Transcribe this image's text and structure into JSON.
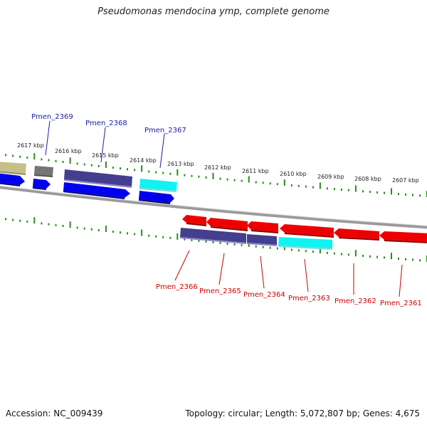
{
  "title": "Pseudomonas mendocina ymp, complete genome",
  "footer": {
    "accession": "Accession: NC_009439",
    "summary": "Topology: circular; Length: 5,072,807 bp; Genes: 4,675"
  },
  "colors": {
    "forward_label": "#1a1aa6",
    "reverse_label": "#cc0000",
    "tick_green": "#2a8a1e",
    "backbone": "#8a8a8a",
    "blue": "#0000ee",
    "navy": "#3f3a88",
    "cyan": "#00f0f0",
    "red": "#ee0000",
    "grey": "#6e6e6e",
    "khaki": "#b5ae7a"
  },
  "kbp_ticks": [
    "2617 kbp",
    "2616 kbp",
    "2615 kbp",
    "2614 kbp",
    "2613 kbp",
    "2612 kbp",
    "2611 kbp",
    "2610 kbp",
    "2609 kbp",
    "2608 kbp",
    "2607 kbp"
  ],
  "forward_gene_labels": [
    "Pmen_2369",
    "Pmen_2368",
    "Pmen_2367"
  ],
  "reverse_gene_labels": [
    "Pmen_2366",
    "Pmen_2365",
    "Pmen_2364",
    "Pmen_2363",
    "Pmen_2362",
    "Pmen_2361"
  ]
}
